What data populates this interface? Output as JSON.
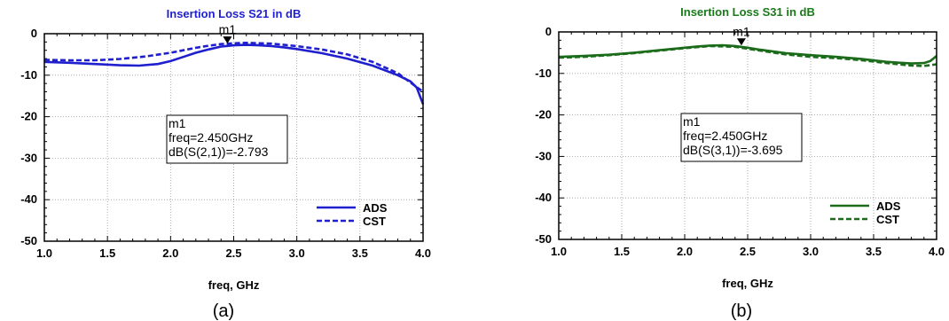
{
  "chart_data": [
    {
      "type": "line",
      "title": "Insertion Loss S21 in dB",
      "title_color": "#1f1fcf",
      "xlabel": "freq, GHz",
      "ylabel": "",
      "xlim": [
        1.0,
        4.0
      ],
      "ylim": [
        -50,
        0
      ],
      "xticks": [
        "1.0",
        "1.5",
        "2.0",
        "2.5",
        "3.0",
        "3.5",
        "4.0"
      ],
      "yticks": [
        "0",
        "-10",
        "-20",
        "-30",
        "-40",
        "-50"
      ],
      "grid": true,
      "legend_position": "bottom-right",
      "caption": "(a)",
      "marker": {
        "name": "m1",
        "x": 2.45,
        "y": -2.793,
        "lines": [
          "m1",
          "freq=2.450GHz",
          "dB(S(2,1))=-2.793"
        ]
      },
      "series": [
        {
          "name": "ADS",
          "style": "solid",
          "color": "#1f1fcf",
          "x": [
            1.0,
            1.2,
            1.4,
            1.6,
            1.75,
            1.9,
            2.0,
            2.1,
            2.2,
            2.3,
            2.4,
            2.5,
            2.6,
            2.7,
            2.8,
            2.9,
            3.0,
            3.2,
            3.4,
            3.6,
            3.8,
            3.9,
            3.95,
            4.0
          ],
          "y": [
            -6.8,
            -7.0,
            -7.3,
            -7.6,
            -7.7,
            -7.3,
            -6.6,
            -5.6,
            -4.6,
            -3.8,
            -3.1,
            -2.8,
            -2.7,
            -2.8,
            -3.0,
            -3.3,
            -3.7,
            -4.7,
            -6.0,
            -7.7,
            -10.0,
            -11.5,
            -13.0,
            -17.0
          ]
        },
        {
          "name": "CST",
          "style": "dashed",
          "color": "#1f1fcf",
          "x": [
            1.0,
            1.2,
            1.4,
            1.6,
            1.8,
            2.0,
            2.1,
            2.2,
            2.3,
            2.4,
            2.5,
            2.6,
            2.7,
            2.8,
            2.9,
            3.0,
            3.2,
            3.4,
            3.6,
            3.8,
            4.0
          ],
          "y": [
            -6.3,
            -6.4,
            -6.4,
            -6.1,
            -5.5,
            -4.6,
            -4.0,
            -3.4,
            -2.9,
            -2.5,
            -2.3,
            -2.2,
            -2.3,
            -2.4,
            -2.7,
            -3.0,
            -3.8,
            -5.0,
            -6.8,
            -9.5,
            -14.0
          ]
        }
      ]
    },
    {
      "type": "line",
      "title": "Insertion Loss S31 in dB",
      "title_color": "#1a7a1a",
      "xlabel": "freq, GHz",
      "ylabel": "",
      "xlim": [
        1.0,
        4.0
      ],
      "ylim": [
        -50,
        0
      ],
      "xticks": [
        "1.0",
        "1.5",
        "2.0",
        "2.5",
        "3.0",
        "3.5",
        "4.0"
      ],
      "yticks": [
        "0",
        "-10",
        "-20",
        "-30",
        "-40",
        "-50"
      ],
      "grid": true,
      "legend_position": "bottom-right",
      "caption": "(b)",
      "marker": {
        "name": "m1",
        "x": 2.45,
        "y": -3.695,
        "lines": [
          "m1",
          "freq=2.450GHz",
          "dB(S(3,1))=-3.695"
        ]
      },
      "series": [
        {
          "name": "ADS",
          "style": "solid",
          "color": "#1a6b1a",
          "x": [
            1.0,
            1.2,
            1.4,
            1.6,
            1.8,
            2.0,
            2.1,
            2.2,
            2.3,
            2.4,
            2.5,
            2.6,
            2.8,
            3.0,
            3.2,
            3.4,
            3.6,
            3.8,
            3.9,
            3.95,
            4.0
          ],
          "y": [
            -6.0,
            -5.8,
            -5.5,
            -5.0,
            -4.4,
            -3.8,
            -3.5,
            -3.3,
            -3.2,
            -3.4,
            -3.8,
            -4.3,
            -5.1,
            -5.6,
            -6.0,
            -6.5,
            -7.2,
            -7.6,
            -7.5,
            -7.0,
            -5.8
          ]
        },
        {
          "name": "CST",
          "style": "dashed",
          "color": "#1a6b1a",
          "x": [
            1.0,
            1.2,
            1.4,
            1.6,
            1.8,
            2.0,
            2.2,
            2.4,
            2.6,
            2.8,
            3.0,
            3.2,
            3.4,
            3.6,
            3.8,
            3.9,
            4.0
          ],
          "y": [
            -6.2,
            -6.0,
            -5.6,
            -5.1,
            -4.5,
            -3.9,
            -3.4,
            -3.6,
            -4.5,
            -5.4,
            -6.0,
            -6.3,
            -6.8,
            -7.5,
            -8.1,
            -8.2,
            -7.8
          ]
        }
      ]
    }
  ]
}
